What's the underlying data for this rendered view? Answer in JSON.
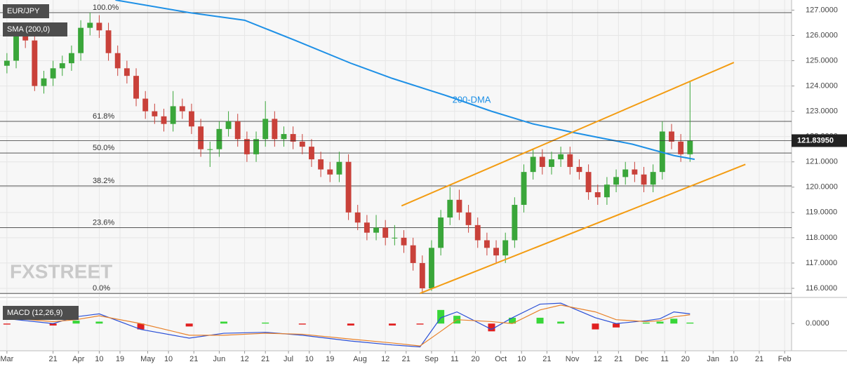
{
  "chart_data": {
    "type": "candlestick",
    "symbol": "EUR/JPY",
    "indicator_label": "SMA (200,0)",
    "logo": "FXSTREET",
    "up_color": "#3aa63a",
    "down_color": "#c9413a",
    "xlim": [
      -3,
      340
    ],
    "ylim": [
      115.75,
      127.4
    ],
    "yticks": [
      {
        "value": 116,
        "label": "116.0000"
      },
      {
        "value": 117,
        "label": "117.0000"
      },
      {
        "value": 118,
        "label": "118.0000"
      },
      {
        "value": 119,
        "label": "119.0000"
      },
      {
        "value": 120,
        "label": "120.0000"
      },
      {
        "value": 121,
        "label": "121.0000"
      },
      {
        "value": 122,
        "label": "122.0000"
      },
      {
        "value": 123,
        "label": "123.0000"
      },
      {
        "value": 124,
        "label": "124.0000"
      },
      {
        "value": 125,
        "label": "125.0000"
      },
      {
        "value": 126,
        "label": "126.0000"
      },
      {
        "value": 127,
        "label": "127.0000"
      }
    ],
    "xticks": [
      {
        "value": 0,
        "label": "Mar"
      },
      {
        "value": 20,
        "label": "21"
      },
      {
        "value": 31,
        "label": "Apr"
      },
      {
        "value": 40,
        "label": "10"
      },
      {
        "value": 49,
        "label": "19"
      },
      {
        "value": 61,
        "label": "May"
      },
      {
        "value": 70,
        "label": "10"
      },
      {
        "value": 81,
        "label": "21"
      },
      {
        "value": 92,
        "label": "Jun"
      },
      {
        "value": 103,
        "label": "12"
      },
      {
        "value": 112,
        "label": "21"
      },
      {
        "value": 122,
        "label": "Jul"
      },
      {
        "value": 131,
        "label": "10"
      },
      {
        "value": 140,
        "label": "19"
      },
      {
        "value": 153,
        "label": "Aug"
      },
      {
        "value": 164,
        "label": "12"
      },
      {
        "value": 173,
        "label": "21"
      },
      {
        "value": 184,
        "label": "Sep"
      },
      {
        "value": 194,
        "label": "11"
      },
      {
        "value": 203,
        "label": "20"
      },
      {
        "value": 214,
        "label": "Oct"
      },
      {
        "value": 223,
        "label": "10"
      },
      {
        "value": 234,
        "label": "21"
      },
      {
        "value": 245,
        "label": "Nov"
      },
      {
        "value": 256,
        "label": "12"
      },
      {
        "value": 265,
        "label": "21"
      },
      {
        "value": 275,
        "label": "Dec"
      },
      {
        "value": 285,
        "label": "11"
      },
      {
        "value": 294,
        "label": "20"
      },
      {
        "value": 306,
        "label": "Jan"
      },
      {
        "value": 315,
        "label": "10"
      },
      {
        "value": 326,
        "label": "21"
      },
      {
        "value": 337,
        "label": "Feb"
      }
    ],
    "grid": true,
    "candles": {
      "x": [
        0,
        4,
        8,
        12,
        16,
        20,
        24,
        28,
        32,
        36,
        40,
        44,
        48,
        52,
        56,
        60,
        64,
        68,
        72,
        76,
        80,
        84,
        88,
        92,
        96,
        100,
        104,
        108,
        112,
        116,
        120,
        124,
        128,
        132,
        136,
        140,
        144,
        148,
        152,
        156,
        160,
        164,
        168,
        172,
        176,
        180,
        184,
        188,
        192,
        196,
        200,
        204,
        208,
        212,
        216,
        220,
        224,
        228,
        232,
        236,
        240,
        244,
        248,
        252,
        256,
        260,
        264,
        268,
        272,
        276,
        280,
        284,
        288,
        292,
        296
      ],
      "ohlc": [
        [
          124.8,
          125.3,
          124.5,
          125.0
        ],
        [
          125.0,
          126.3,
          124.7,
          126.0
        ],
        [
          126.0,
          126.3,
          125.5,
          125.8
        ],
        [
          125.8,
          126.1,
          123.8,
          124.0
        ],
        [
          124.0,
          124.6,
          123.7,
          124.3
        ],
        [
          124.3,
          125.0,
          124.0,
          124.7
        ],
        [
          124.7,
          125.2,
          124.4,
          124.9
        ],
        [
          124.9,
          125.6,
          124.6,
          125.3
        ],
        [
          125.3,
          126.6,
          125.0,
          126.3
        ],
        [
          126.3,
          126.9,
          126.0,
          126.5
        ],
        [
          126.5,
          126.8,
          125.9,
          126.2
        ],
        [
          126.2,
          126.5,
          125.0,
          125.3
        ],
        [
          125.3,
          125.6,
          124.4,
          124.7
        ],
        [
          124.7,
          125.0,
          124.1,
          124.4
        ],
        [
          124.4,
          124.7,
          123.2,
          123.5
        ],
        [
          123.5,
          123.8,
          122.7,
          123.0
        ],
        [
          123.0,
          123.3,
          122.5,
          122.8
        ],
        [
          122.8,
          123.1,
          122.2,
          122.5
        ],
        [
          122.5,
          123.8,
          122.2,
          123.2
        ],
        [
          123.2,
          123.5,
          122.7,
          123.0
        ],
        [
          123.0,
          123.3,
          122.1,
          122.4
        ],
        [
          122.4,
          122.7,
          121.2,
          121.5
        ],
        [
          121.5,
          121.8,
          120.8,
          121.5
        ],
        [
          121.5,
          122.6,
          121.2,
          122.3
        ],
        [
          122.3,
          123.0,
          122.0,
          122.6
        ],
        [
          122.6,
          122.9,
          121.6,
          121.9
        ],
        [
          121.9,
          122.2,
          121.0,
          121.3
        ],
        [
          121.3,
          122.2,
          121.0,
          121.9
        ],
        [
          121.9,
          123.4,
          121.6,
          122.7
        ],
        [
          122.7,
          123.0,
          121.6,
          121.9
        ],
        [
          121.9,
          122.4,
          121.6,
          122.1
        ],
        [
          122.1,
          122.4,
          121.5,
          121.8
        ],
        [
          121.8,
          122.1,
          121.3,
          121.6
        ],
        [
          121.6,
          121.9,
          120.8,
          121.1
        ],
        [
          121.1,
          121.4,
          120.4,
          120.7
        ],
        [
          120.7,
          121.0,
          120.2,
          120.5
        ],
        [
          120.5,
          121.4,
          120.2,
          121.0
        ],
        [
          121.0,
          121.3,
          118.7,
          119.0
        ],
        [
          119.0,
          119.3,
          118.3,
          118.6
        ],
        [
          118.6,
          118.9,
          117.9,
          118.2
        ],
        [
          118.2,
          118.9,
          117.9,
          118.4
        ],
        [
          118.4,
          118.7,
          117.7,
          118.0
        ],
        [
          118.0,
          118.5,
          117.7,
          118.0
        ],
        [
          118.0,
          118.3,
          117.4,
          117.7
        ],
        [
          117.7,
          118.0,
          116.7,
          117.0
        ],
        [
          117.0,
          117.3,
          115.8,
          116.0
        ],
        [
          116.0,
          117.9,
          115.9,
          117.6
        ],
        [
          117.6,
          119.1,
          117.3,
          118.8
        ],
        [
          118.8,
          120.0,
          118.5,
          119.5
        ],
        [
          119.5,
          119.9,
          118.7,
          119.0
        ],
        [
          119.0,
          119.3,
          118.2,
          118.5
        ],
        [
          118.5,
          118.8,
          117.6,
          117.9
        ],
        [
          117.9,
          118.2,
          117.3,
          117.6
        ],
        [
          117.6,
          117.9,
          117.0,
          117.3
        ],
        [
          117.3,
          118.2,
          117.0,
          117.9
        ],
        [
          117.9,
          119.6,
          117.6,
          119.3
        ],
        [
          119.3,
          120.9,
          119.0,
          120.6
        ],
        [
          120.6,
          121.5,
          120.3,
          121.2
        ],
        [
          121.2,
          121.5,
          120.5,
          120.8
        ],
        [
          120.8,
          121.4,
          120.5,
          121.1
        ],
        [
          121.1,
          121.6,
          120.8,
          121.3
        ],
        [
          121.3,
          121.6,
          120.5,
          120.8
        ],
        [
          120.8,
          121.1,
          120.3,
          120.6
        ],
        [
          120.6,
          120.9,
          119.5,
          119.8
        ],
        [
          119.8,
          120.1,
          119.3,
          119.6
        ],
        [
          119.6,
          120.4,
          119.3,
          120.1
        ],
        [
          120.1,
          120.7,
          119.8,
          120.4
        ],
        [
          120.4,
          121.0,
          120.1,
          120.7
        ],
        [
          120.7,
          121.0,
          120.2,
          120.5
        ],
        [
          120.5,
          120.8,
          119.8,
          120.1
        ],
        [
          120.1,
          120.9,
          119.8,
          120.6
        ],
        [
          120.6,
          122.6,
          120.3,
          122.2
        ],
        [
          122.2,
          122.5,
          121.5,
          121.8
        ],
        [
          121.8,
          122.1,
          121.0,
          121.3
        ],
        [
          121.3,
          124.2,
          121.0,
          121.84
        ]
      ]
    },
    "sma": {
      "name": "200-DMA",
      "color": "#1e90e6",
      "x": [
        47,
        79,
        103,
        125,
        149,
        167,
        191,
        210,
        228,
        246,
        271,
        289,
        298
      ],
      "values": [
        127.4,
        126.9,
        126.6,
        125.8,
        124.9,
        124.3,
        123.6,
        123.0,
        122.5,
        122.15,
        121.7,
        121.25,
        121.1
      ],
      "label_x": 193,
      "label_y": 123.43
    },
    "channel": {
      "color": "#f39c12",
      "lines": [
        {
          "x": [
            171,
            315
          ],
          "values": [
            119.26,
            124.93
          ]
        },
        {
          "x": [
            179,
            320
          ],
          "values": [
            115.8,
            120.9
          ]
        }
      ]
    },
    "fib_levels": [
      {
        "label": "100.0%",
        "value": 126.9
      },
      {
        "label": "61.8%",
        "value": 122.6
      },
      {
        "label": "50.0%",
        "value": 121.35
      },
      {
        "label": "38.2%",
        "value": 120.05
      },
      {
        "label": "23.6%",
        "value": 118.4
      },
      {
        "label": "0.0%",
        "value": 115.8
      }
    ],
    "last_price": {
      "value": 121.8395,
      "label": "121.83950"
    },
    "macd": {
      "title": "MACD (12,26,9)",
      "ylim": [
        -1.4,
        1.2
      ],
      "yticks": [
        {
          "value": 0,
          "label": "0.0000"
        }
      ],
      "x": [
        0,
        20,
        30,
        40,
        58,
        79,
        94,
        112,
        128,
        149,
        167,
        179,
        188,
        195,
        210,
        219,
        231,
        240,
        255,
        264,
        277,
        283,
        289,
        296
      ],
      "macd": {
        "color": "#2a4fd6",
        "values": [
          0.25,
          0,
          0.35,
          0.5,
          -0.3,
          -0.75,
          -0.5,
          -0.45,
          -0.6,
          -0.9,
          -1.1,
          -1.2,
          0.3,
          0.6,
          -0.3,
          0.3,
          1.0,
          1.05,
          0.3,
          0,
          0.15,
          0.25,
          0.6,
          0.5
        ]
      },
      "signal": {
        "color": "#e8822a",
        "values": [
          0.3,
          0.1,
          0.2,
          0.4,
          0.0,
          -0.6,
          -0.6,
          -0.5,
          -0.55,
          -0.8,
          -1.0,
          -1.15,
          -0.4,
          0.2,
          0.1,
          0.0,
          0.7,
          0.95,
          0.6,
          0.2,
          0.1,
          0.15,
          0.35,
          0.45
        ]
      },
      "histogram": {
        "pos_color": "#39d639",
        "neg_color": "#e02020",
        "values": [
          -0.05,
          -0.1,
          0.15,
          0.1,
          -0.3,
          -0.15,
          0.1,
          0.05,
          -0.05,
          -0.1,
          -0.1,
          -0.05,
          0.7,
          0.4,
          -0.4,
          0.3,
          0.3,
          0.1,
          -0.3,
          -0.2,
          0.05,
          0.1,
          0.25,
          0.05
        ]
      }
    }
  }
}
